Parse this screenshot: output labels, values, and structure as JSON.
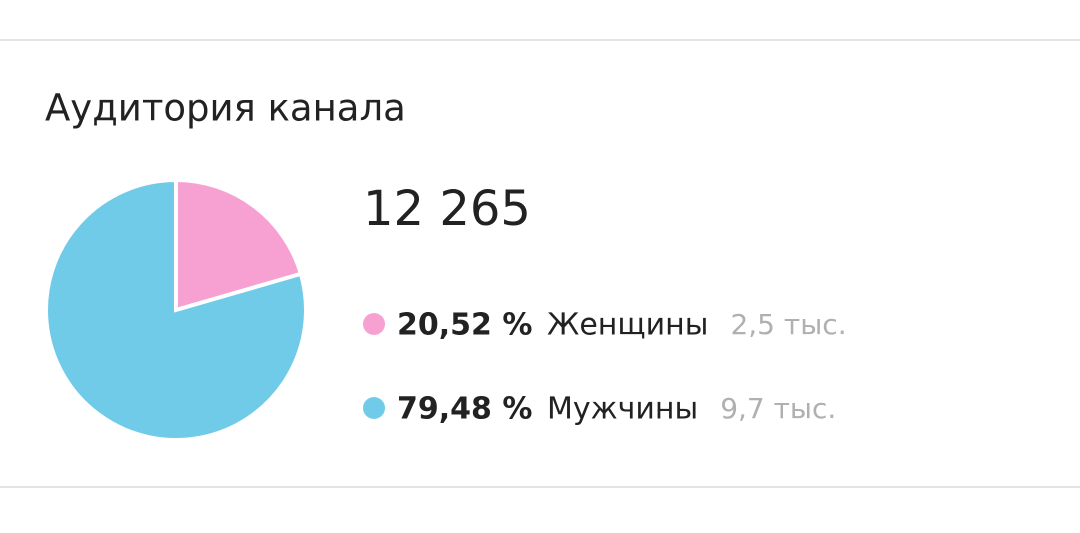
{
  "chart_data": {
    "type": "pie",
    "title": "Аудитория канала",
    "total": "12 265",
    "categories": [
      "Женщины",
      "Мужчины"
    ],
    "values": [
      20.52,
      79.48
    ],
    "value_labels": [
      "20,52 %",
      "79,48 %"
    ],
    "counts": [
      2500,
      9700
    ],
    "count_labels": [
      "2,5 тыс.",
      "9,7 тыс."
    ],
    "colors": [
      "#f7a1d2",
      "#6fcbe8"
    ]
  }
}
